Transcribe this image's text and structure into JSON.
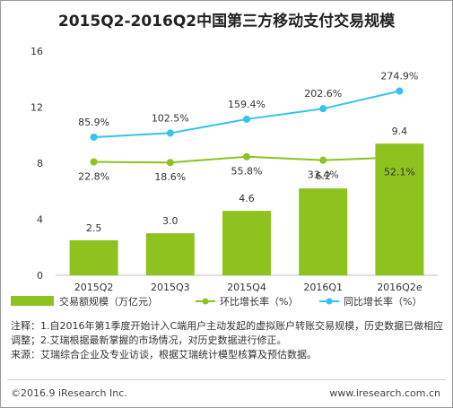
{
  "chart_data": {
    "type": "bar",
    "title": "2015Q2-2016Q2中国第三方移动支付交易规模",
    "categories": [
      "2015Q2",
      "2015Q3",
      "2015Q4",
      "2016Q1",
      "2016Q2e"
    ],
    "ylim": [
      0,
      16
    ],
    "yticks": [
      "0",
      "4",
      "8",
      "12",
      "16"
    ],
    "series": [
      {
        "name": "交易额规模（万亿元）",
        "kind": "bar",
        "values": [
          2.5,
          3.0,
          4.6,
          6.2,
          9.4
        ],
        "labels": [
          "2.5",
          "3.0",
          "4.6",
          "6.2",
          "9.4"
        ],
        "color": "#8dc21f"
      },
      {
        "name": "环比增长率（%）",
        "kind": "line",
        "values": [
          22.8,
          18.6,
          55.8,
          33.4,
          52.1
        ],
        "labels": [
          "22.8%",
          "18.6%",
          "55.8%",
          "33.4%",
          "52.1%"
        ],
        "color": "#8dc21f"
      },
      {
        "name": "同比增长率（%）",
        "kind": "line",
        "values": [
          85.9,
          102.5,
          159.4,
          202.6,
          274.9
        ],
        "labels": [
          "85.9%",
          "102.5%",
          "159.4%",
          "202.6%",
          "274.9%"
        ],
        "color": "#33c3ee"
      }
    ],
    "legend_position": "bottom",
    "grid": false
  },
  "notes": {
    "line1": "注释：1.自2016年第1季度开始计入C端用户主动发起的虚拟账户转账交易规模，历史数据已做相应调整；2.艾瑞根据最新掌握的市场情况，对历史数据进行修正。",
    "line2": "来源：艾瑞综合企业及专业访谈，根据艾瑞统计模型核算及预估数据。"
  },
  "footer": {
    "copyright": "©2016.9 iResearch Inc.",
    "website": "www.iresearch.com.cn"
  }
}
